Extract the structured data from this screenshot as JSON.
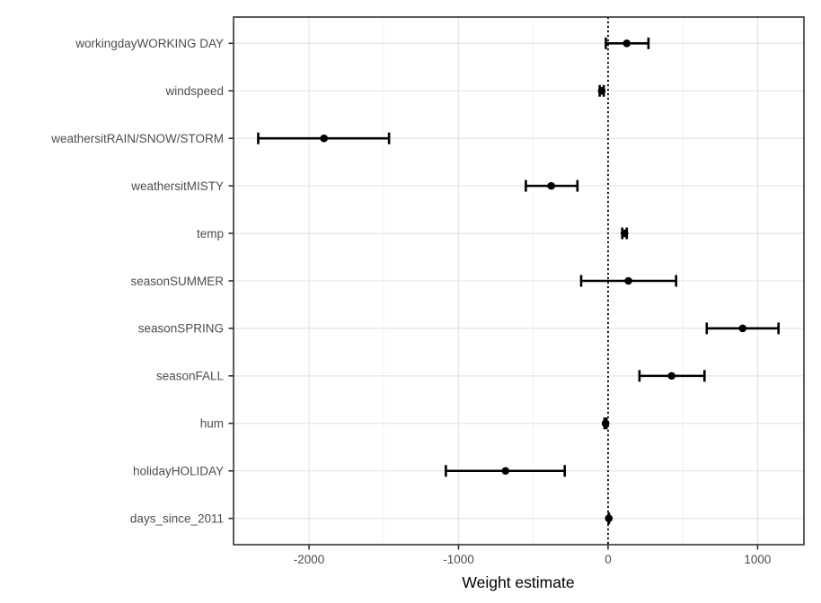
{
  "chart_data": {
    "type": "scatter",
    "variant": "coefficient_dot_whisker_plot",
    "title": "",
    "xlabel": "Weight estimate",
    "ylabel": "",
    "series": [
      {
        "name": "weight_estimates_with_ci",
        "points": [
          {
            "label": "workingdayWORKING DAY",
            "estimate": 125,
            "ci_low": -15,
            "ci_high": 270
          },
          {
            "label": "windspeed",
            "estimate": -42,
            "ci_low": -56,
            "ci_high": -29
          },
          {
            "label": "weathersitRAIN/SNOW/STORM",
            "estimate": -1900,
            "ci_low": -2340,
            "ci_high": -1465
          },
          {
            "label": "weathersitMISTY",
            "estimate": -380,
            "ci_low": -550,
            "ci_high": -205
          },
          {
            "label": "temp",
            "estimate": 110,
            "ci_low": 95,
            "ci_high": 125
          },
          {
            "label": "seasonSUMMER",
            "estimate": 136,
            "ci_low": -180,
            "ci_high": 455
          },
          {
            "label": "seasonSPRING",
            "estimate": 900,
            "ci_low": 660,
            "ci_high": 1140
          },
          {
            "label": "seasonFALL",
            "estimate": 425,
            "ci_low": 210,
            "ci_high": 645
          },
          {
            "label": "hum",
            "estimate": -17,
            "ci_low": -24,
            "ci_high": -11
          },
          {
            "label": "holidayHOLIDAY",
            "estimate": -686,
            "ci_low": -1085,
            "ci_high": -290
          },
          {
            "label": "days_since_2011",
            "estimate": 5,
            "ci_low": 4,
            "ci_high": 6
          }
        ]
      }
    ],
    "x_axis": {
      "label": "Weight estimate",
      "ticks": [
        -2000,
        -1000,
        0,
        1000
      ],
      "tick_labels": [
        "-2000",
        "-1000",
        "0",
        "1000"
      ],
      "minor_gridlines": [
        -1500,
        -500,
        500
      ],
      "range": [
        -2505,
        1310
      ]
    },
    "y_axis": {
      "label": "",
      "categories_top_to_bottom": [
        "workingdayWORKING DAY",
        "windspeed",
        "weathersitRAIN/SNOW/STORM",
        "weathersitMISTY",
        "temp",
        "seasonSUMMER",
        "seasonSPRING",
        "seasonFALL",
        "hum",
        "holidayHOLIDAY",
        "days_since_2011"
      ]
    },
    "reference_line": {
      "x": 0,
      "style": "dotted",
      "color": "#000000"
    },
    "grid": true,
    "legend": false
  },
  "colors": {
    "background": "#ffffff",
    "panel_background": "#ffffff",
    "panel_border": "#333333",
    "grid_major": "#e6e6e6",
    "grid_minor": "#f2f2f2",
    "data": "#000000",
    "axis_text": "#4d4d4d",
    "axis_title": "#000000",
    "tick_mark": "#333333",
    "reference_line": "#000000"
  }
}
